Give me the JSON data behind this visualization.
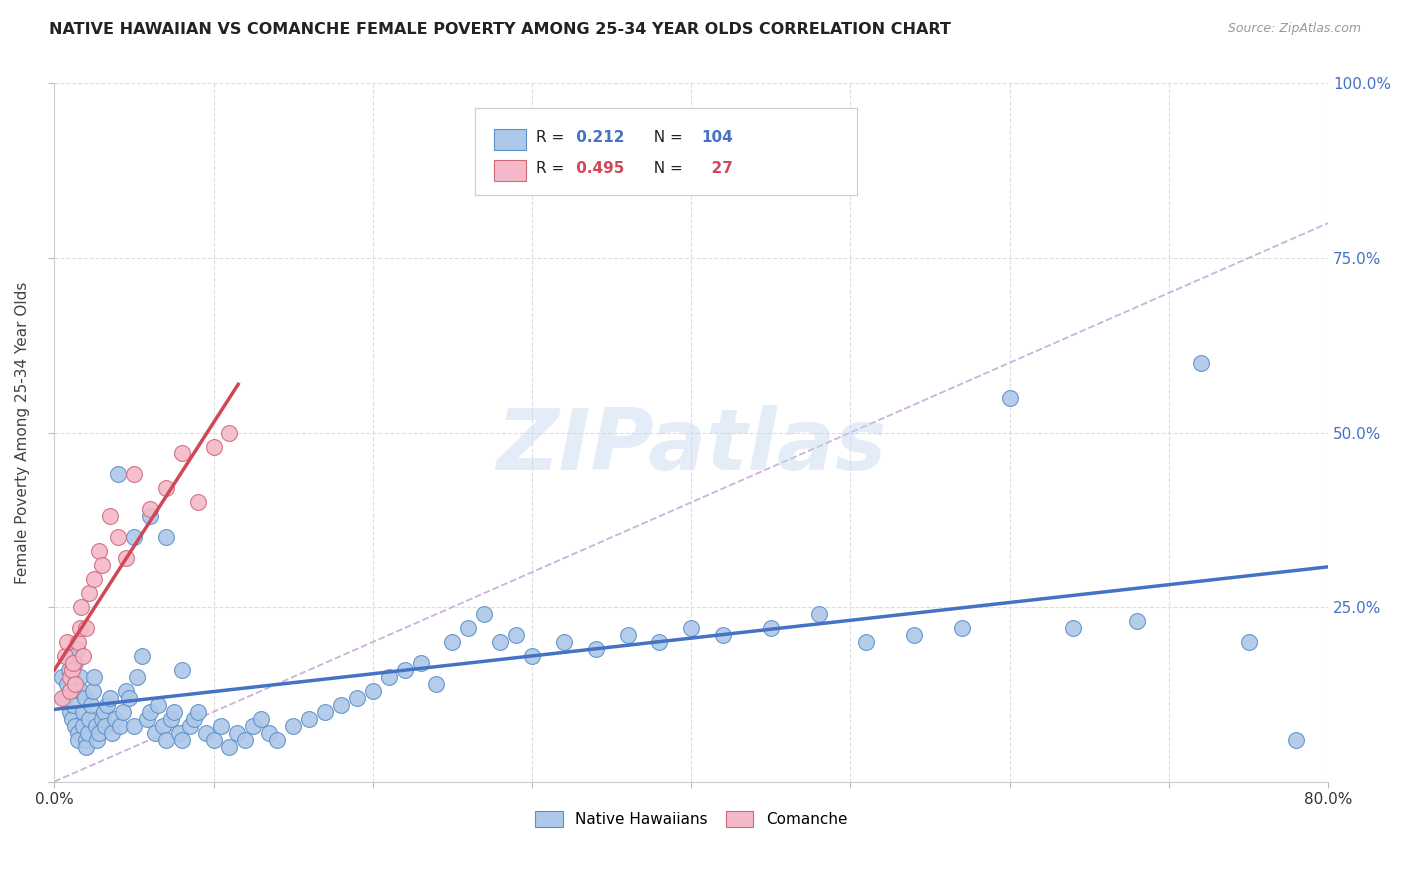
{
  "title": "NATIVE HAWAIIAN VS COMANCHE FEMALE POVERTY AMONG 25-34 YEAR OLDS CORRELATION CHART",
  "source": "Source: ZipAtlas.com",
  "ylabel": "Female Poverty Among 25-34 Year Olds",
  "xlim": [
    0.0,
    0.8
  ],
  "ylim": [
    0.0,
    1.0
  ],
  "nh_R": 0.212,
  "nh_N": 104,
  "com_R": 0.495,
  "com_N": 27,
  "nh_color": "#adc8e8",
  "com_color": "#f5b8c8",
  "nh_edge_color": "#5b8fc9",
  "com_edge_color": "#d06878",
  "nh_line_color": "#4472c4",
  "com_line_color": "#d04858",
  "ref_line_color": "#c8a8d8",
  "watermark": "ZIPatlas",
  "background_color": "#ffffff",
  "title_fontsize": 11.5,
  "source_fontsize": 9,
  "grid_color": "#dddddd",
  "nh_x": [
    0.005,
    0.007,
    0.008,
    0.009,
    0.01,
    0.01,
    0.01,
    0.011,
    0.012,
    0.013,
    0.013,
    0.014,
    0.015,
    0.015,
    0.016,
    0.017,
    0.018,
    0.018,
    0.019,
    0.02,
    0.02,
    0.021,
    0.022,
    0.023,
    0.024,
    0.025,
    0.026,
    0.027,
    0.028,
    0.03,
    0.031,
    0.032,
    0.033,
    0.035,
    0.036,
    0.038,
    0.04,
    0.041,
    0.043,
    0.045,
    0.047,
    0.05,
    0.052,
    0.055,
    0.058,
    0.06,
    0.063,
    0.065,
    0.068,
    0.07,
    0.073,
    0.075,
    0.078,
    0.08,
    0.085,
    0.088,
    0.09,
    0.095,
    0.1,
    0.105,
    0.11,
    0.115,
    0.12,
    0.125,
    0.13,
    0.135,
    0.14,
    0.15,
    0.16,
    0.17,
    0.18,
    0.19,
    0.2,
    0.21,
    0.22,
    0.23,
    0.24,
    0.25,
    0.26,
    0.27,
    0.28,
    0.29,
    0.3,
    0.32,
    0.34,
    0.36,
    0.38,
    0.4,
    0.42,
    0.45,
    0.48,
    0.51,
    0.54,
    0.57,
    0.6,
    0.64,
    0.68,
    0.72,
    0.75,
    0.78,
    0.05,
    0.06,
    0.07,
    0.08
  ],
  "nh_y": [
    0.15,
    0.12,
    0.14,
    0.16,
    0.18,
    0.1,
    0.13,
    0.09,
    0.11,
    0.08,
    0.17,
    0.19,
    0.07,
    0.06,
    0.15,
    0.13,
    0.08,
    0.1,
    0.12,
    0.06,
    0.05,
    0.07,
    0.09,
    0.11,
    0.13,
    0.15,
    0.08,
    0.06,
    0.07,
    0.09,
    0.1,
    0.08,
    0.11,
    0.12,
    0.07,
    0.09,
    0.44,
    0.08,
    0.1,
    0.13,
    0.12,
    0.08,
    0.15,
    0.18,
    0.09,
    0.1,
    0.07,
    0.11,
    0.08,
    0.06,
    0.09,
    0.1,
    0.07,
    0.06,
    0.08,
    0.09,
    0.1,
    0.07,
    0.06,
    0.08,
    0.05,
    0.07,
    0.06,
    0.08,
    0.09,
    0.07,
    0.06,
    0.08,
    0.09,
    0.1,
    0.11,
    0.12,
    0.13,
    0.15,
    0.16,
    0.17,
    0.14,
    0.2,
    0.22,
    0.24,
    0.2,
    0.21,
    0.18,
    0.2,
    0.19,
    0.21,
    0.2,
    0.22,
    0.21,
    0.22,
    0.24,
    0.2,
    0.21,
    0.22,
    0.55,
    0.22,
    0.23,
    0.6,
    0.2,
    0.06,
    0.35,
    0.38,
    0.35,
    0.16
  ],
  "com_x": [
    0.005,
    0.007,
    0.008,
    0.01,
    0.01,
    0.011,
    0.012,
    0.013,
    0.015,
    0.016,
    0.017,
    0.018,
    0.02,
    0.022,
    0.025,
    0.028,
    0.03,
    0.035,
    0.04,
    0.045,
    0.05,
    0.06,
    0.07,
    0.08,
    0.09,
    0.1,
    0.11
  ],
  "com_y": [
    0.12,
    0.18,
    0.2,
    0.15,
    0.13,
    0.16,
    0.17,
    0.14,
    0.2,
    0.22,
    0.25,
    0.18,
    0.22,
    0.27,
    0.29,
    0.33,
    0.31,
    0.38,
    0.35,
    0.32,
    0.44,
    0.39,
    0.42,
    0.47,
    0.4,
    0.48,
    0.5
  ]
}
